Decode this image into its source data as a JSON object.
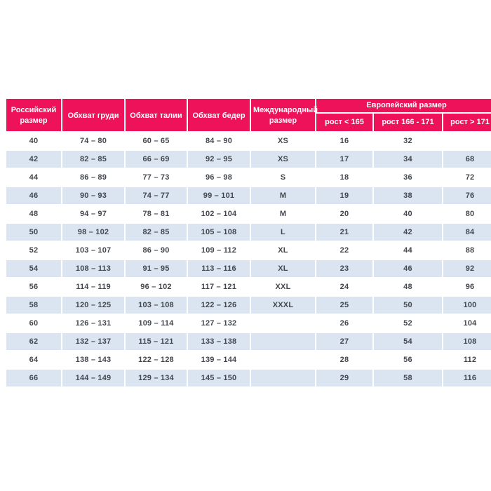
{
  "colors": {
    "header_bg": "#ED125A",
    "header_text": "#FFFFFF",
    "row_bg": "#FFFFFF",
    "row_alt_bg": "#DBE5F2",
    "body_text": "#43474E",
    "page_bg": "#FFFFFF"
  },
  "table": {
    "headers": {
      "russian_size": "Российский размер",
      "chest": "Обхват груди",
      "waist": "Обхват талии",
      "hips": "Обхват бедер",
      "international_size": "Международный размер",
      "european_size": "Европейский размер",
      "height_lt_165": "рост < 165",
      "height_166_171": "рост 166 - 171",
      "height_gt_171": "рост > 171"
    },
    "rows": [
      [
        "40",
        "74 – 80",
        "60 – 65",
        "84 – 90",
        "XS",
        "16",
        "32",
        ""
      ],
      [
        "42",
        "82 – 85",
        "66 – 69",
        "92 – 95",
        "XS",
        "17",
        "34",
        "68"
      ],
      [
        "44",
        "86 – 89",
        "77 – 73",
        "96 – 98",
        "S",
        "18",
        "36",
        "72"
      ],
      [
        "46",
        "90 – 93",
        "74 – 77",
        "99 – 101",
        "M",
        "19",
        "38",
        "76"
      ],
      [
        "48",
        "94 – 97",
        "78 – 81",
        "102 – 104",
        "M",
        "20",
        "40",
        "80"
      ],
      [
        "50",
        "98 – 102",
        "82 – 85",
        "105 – 108",
        "L",
        "21",
        "42",
        "84"
      ],
      [
        "52",
        "103 – 107",
        "86 – 90",
        "109 – 112",
        "XL",
        "22",
        "44",
        "88"
      ],
      [
        "54",
        "108 – 113",
        "91 – 95",
        "113 – 116",
        "XL",
        "23",
        "46",
        "92"
      ],
      [
        "56",
        "114 – 119",
        "96 – 102",
        "117 – 121",
        "XXL",
        "24",
        "48",
        "96"
      ],
      [
        "58",
        "120 – 125",
        "103 – 108",
        "122 – 126",
        "XXXL",
        "25",
        "50",
        "100"
      ],
      [
        "60",
        "126 – 131",
        "109 – 114",
        "127 – 132",
        "",
        "26",
        "52",
        "104"
      ],
      [
        "62",
        "132 – 137",
        "115 – 121",
        "133 – 138",
        "",
        "27",
        "54",
        "108"
      ],
      [
        "64",
        "138 – 143",
        "122 – 128",
        "139 – 144",
        "",
        "28",
        "56",
        "112"
      ],
      [
        "66",
        "144 – 149",
        "129 – 134",
        "145 – 150",
        "",
        "29",
        "58",
        "116"
      ]
    ]
  }
}
